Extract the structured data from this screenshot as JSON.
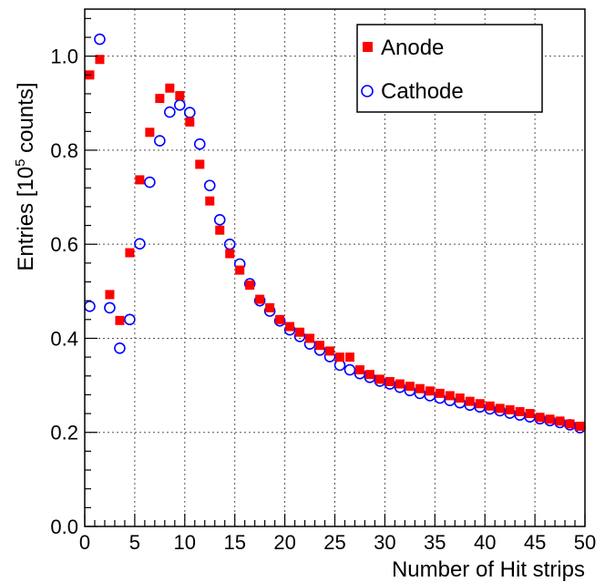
{
  "chart_data": {
    "type": "scatter",
    "title": "",
    "xlabel": "Number of Hit strips",
    "ylabel_main": "Entries [10",
    "ylabel_sup": "5",
    "ylabel_tail": " counts]",
    "xlim": [
      0,
      50
    ],
    "ylim": [
      0,
      1.1
    ],
    "x_ticks": [
      0,
      5,
      10,
      15,
      20,
      25,
      30,
      35,
      40,
      45,
      50
    ],
    "y_ticks": [
      0.0,
      0.2,
      0.4,
      0.6,
      0.8,
      1.0
    ],
    "y_tick_labels": [
      "0.0",
      "0.2",
      "0.4",
      "0.6",
      "0.8",
      "1.0"
    ],
    "grid": true,
    "legend_position": "top-right",
    "series": [
      {
        "name": "Anode",
        "marker": "filled-square",
        "color": "#ff0000",
        "x": [
          0.5,
          1.5,
          2.5,
          3.5,
          4.5,
          5.5,
          6.5,
          7.5,
          8.5,
          9.5,
          10.5,
          11.5,
          12.5,
          13.5,
          14.5,
          15.5,
          16.5,
          17.5,
          18.5,
          19.5,
          20.5,
          21.5,
          22.5,
          23.5,
          24.5,
          25.5,
          26.5,
          27.5,
          28.5,
          29.5,
          30.5,
          31.5,
          32.5,
          33.5,
          34.5,
          35.5,
          36.5,
          37.5,
          38.5,
          39.5,
          40.5,
          41.5,
          42.5,
          43.5,
          44.5,
          45.5,
          46.5,
          47.5,
          48.5,
          49.5
        ],
        "values": [
          0.96,
          0.993,
          0.493,
          0.438,
          0.582,
          0.737,
          0.838,
          0.91,
          0.932,
          0.916,
          0.86,
          0.77,
          0.692,
          0.63,
          0.58,
          0.545,
          0.513,
          0.483,
          0.465,
          0.44,
          0.425,
          0.413,
          0.4,
          0.385,
          0.373,
          0.36,
          0.36,
          0.333,
          0.323,
          0.313,
          0.308,
          0.303,
          0.298,
          0.293,
          0.288,
          0.283,
          0.278,
          0.273,
          0.266,
          0.261,
          0.256,
          0.251,
          0.248,
          0.244,
          0.24,
          0.232,
          0.228,
          0.224,
          0.218,
          0.213
        ]
      },
      {
        "name": "Cathode",
        "marker": "open-circle",
        "color": "#0000ff",
        "x": [
          0.5,
          1.5,
          2.5,
          3.5,
          4.5,
          5.5,
          6.5,
          7.5,
          8.5,
          9.5,
          10.5,
          11.5,
          12.5,
          13.5,
          14.5,
          15.5,
          16.5,
          17.5,
          18.5,
          19.5,
          20.5,
          21.5,
          22.5,
          23.5,
          24.5,
          25.5,
          26.5,
          27.5,
          28.5,
          29.5,
          30.5,
          31.5,
          32.5,
          33.5,
          34.5,
          35.5,
          36.5,
          37.5,
          38.5,
          39.5,
          40.5,
          41.5,
          42.5,
          43.5,
          44.5,
          45.5,
          46.5,
          47.5,
          48.5,
          49.5
        ],
        "values": [
          0.468,
          1.036,
          0.465,
          0.379,
          0.44,
          0.601,
          0.732,
          0.82,
          0.881,
          0.896,
          0.88,
          0.813,
          0.725,
          0.652,
          0.6,
          0.558,
          0.516,
          0.48,
          0.458,
          0.437,
          0.418,
          0.404,
          0.388,
          0.375,
          0.361,
          0.343,
          0.333,
          0.325,
          0.317,
          0.309,
          0.303,
          0.296,
          0.289,
          0.283,
          0.278,
          0.273,
          0.268,
          0.263,
          0.258,
          0.254,
          0.25,
          0.246,
          0.241,
          0.237,
          0.233,
          0.229,
          0.225,
          0.221,
          0.216,
          0.21
        ]
      }
    ]
  }
}
